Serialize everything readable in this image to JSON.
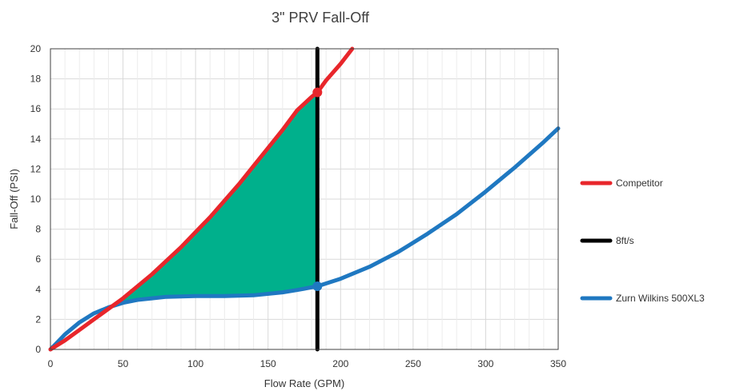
{
  "chart_data": {
    "type": "line",
    "title": "3\" PRV Fall-Off",
    "xlabel": "Flow Rate (GPM)",
    "ylabel": "Fall-Off (PSI)",
    "xlim": [
      0,
      350
    ],
    "ylim": [
      0,
      20
    ],
    "x_ticks": [
      0,
      50,
      100,
      150,
      200,
      250,
      300,
      350
    ],
    "y_ticks": [
      0,
      2,
      4,
      6,
      8,
      10,
      12,
      14,
      16,
      18,
      20
    ],
    "x_tick_labels": [
      "0",
      "50",
      "100",
      "150",
      "200",
      "250",
      "300",
      "350"
    ],
    "y_tick_labels": [
      "0",
      "2",
      "4",
      "6",
      "8",
      "10",
      "12",
      "14",
      "16",
      "18",
      "20"
    ],
    "grid": true,
    "legend_position": "right",
    "series": [
      {
        "name": "Competitor",
        "color": "#e8262b",
        "x": [
          0,
          10,
          20,
          30,
          40,
          50,
          60,
          70,
          80,
          90,
          100,
          110,
          120,
          130,
          140,
          150,
          160,
          170,
          180,
          184,
          190,
          200,
          208
        ],
        "y": [
          0,
          0.6,
          1.3,
          2.0,
          2.7,
          3.4,
          4.2,
          5.0,
          5.9,
          6.8,
          7.8,
          8.8,
          9.9,
          11.0,
          12.2,
          13.4,
          14.6,
          15.9,
          16.8,
          17.1,
          17.9,
          19.0,
          20.0
        ]
      },
      {
        "name": "8ft/s",
        "color": "#000000",
        "x": [
          184,
          184
        ],
        "y": [
          0,
          20
        ]
      },
      {
        "name": "Zurn Wilkins 500XL3",
        "color": "#1f78c1",
        "x": [
          0,
          5,
          10,
          20,
          30,
          40,
          50,
          60,
          70,
          80,
          100,
          120,
          140,
          160,
          170,
          184,
          200,
          220,
          240,
          260,
          280,
          300,
          320,
          340,
          350
        ],
        "y": [
          0,
          0.5,
          1.0,
          1.8,
          2.4,
          2.8,
          3.1,
          3.3,
          3.4,
          3.5,
          3.55,
          3.55,
          3.6,
          3.8,
          3.95,
          4.2,
          4.7,
          5.5,
          6.5,
          7.7,
          9.0,
          10.5,
          12.1,
          13.8,
          14.7
        ]
      }
    ],
    "highlight_points": [
      {
        "series": "Competitor",
        "x": 184,
        "y": 17.1
      },
      {
        "series": "Zurn Wilkins 500XL3",
        "x": 184,
        "y": 4.2
      }
    ],
    "filled_region": {
      "between": [
        "Competitor",
        "Zurn Wilkins 500XL3"
      ],
      "x_range": [
        40,
        184
      ],
      "color": "#00b08c"
    },
    "grid_color": "#d9d9d9",
    "plot_border_color": "#404040"
  }
}
